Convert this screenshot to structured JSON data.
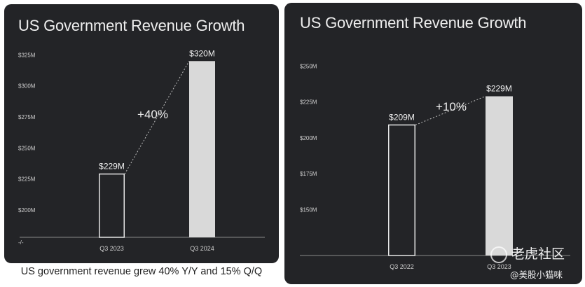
{
  "chart_data": [
    {
      "type": "bar",
      "title": "US Government Revenue Growth",
      "categories": [
        "Q3 2023",
        "Q3 2024"
      ],
      "values": [
        229,
        320
      ],
      "value_labels": [
        "$229M",
        "$320M"
      ],
      "ytick_labels": [
        "$325M",
        "$300M",
        "$275M",
        "$250M",
        "$225M",
        "$200M"
      ],
      "ytick_values": [
        325,
        300,
        275,
        250,
        225,
        200
      ],
      "axis_break_label": "-/-",
      "ylim": [
        178,
        332
      ],
      "growth_label": "+40%",
      "ylabel": "",
      "xlabel": ""
    },
    {
      "type": "bar",
      "title": "US Government Revenue Growth",
      "categories": [
        "Q3 2022",
        "Q3 2023"
      ],
      "values": [
        209,
        229
      ],
      "value_labels": [
        "$209M",
        "$229M"
      ],
      "ytick_labels": [
        "$250M",
        "$225M",
        "$200M",
        "$175M",
        "$150M"
      ],
      "ytick_values": [
        250,
        225,
        200,
        175,
        150
      ],
      "ylim": [
        118,
        260
      ],
      "growth_label": "+10%",
      "ylabel": "",
      "xlabel": ""
    }
  ],
  "caption": "US government revenue grew 40% Y/Y and 15% Q/Q",
  "watermark": {
    "logo_text": "老虎社区",
    "user_text": "@美股小猫咪"
  },
  "colors": {
    "panel_bg": "#232427",
    "bar_current": "#d9d9d9",
    "bar_previous_outline": "#e6e6e6",
    "text": "#eeeeee",
    "axis": "#8a8a8a"
  }
}
